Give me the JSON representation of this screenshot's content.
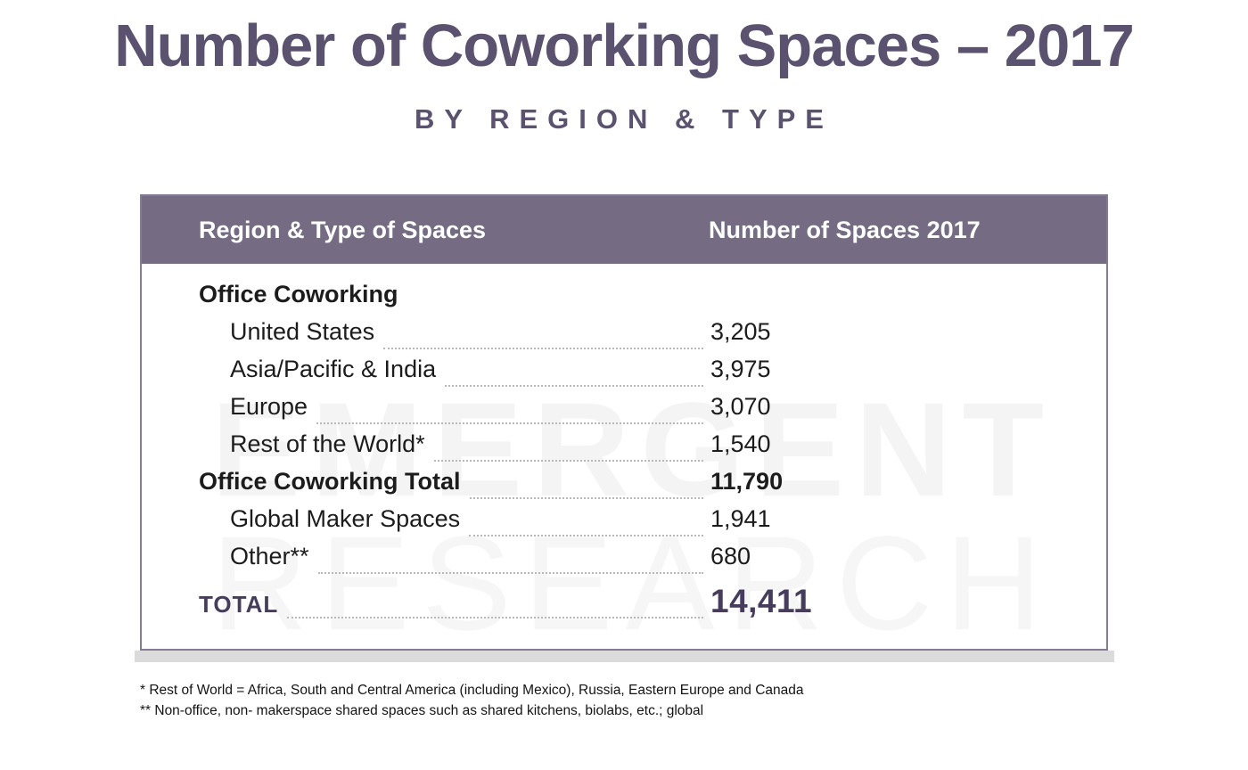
{
  "header": {
    "title": "Number of Coworking Spaces – 2017",
    "subtitle": "BY REGION & TYPE"
  },
  "table": {
    "columns": {
      "col1": "Region & Type of Spaces",
      "col2": "Number of Spaces 2017"
    },
    "rows": [
      {
        "label": "Office Coworking",
        "value": ""
      },
      {
        "label": "United States",
        "value": "3,205"
      },
      {
        "label": "Asia/Pacific & India",
        "value": "3,975"
      },
      {
        "label": "Europe",
        "value": "3,070"
      },
      {
        "label": "Rest of the World*",
        "value": "1,540"
      },
      {
        "label": "Office Coworking Total",
        "value": "11,790"
      },
      {
        "label": "Global Maker Spaces",
        "value": "1,941"
      },
      {
        "label": "Other**",
        "value": "680"
      }
    ],
    "total": {
      "label": "TOTAL",
      "value": "14,411"
    }
  },
  "watermark": {
    "line1": "EMERGENT",
    "line2": "RESEARCH"
  },
  "footnotes": [
    "* Rest of World = Africa, South and Central America (including Mexico), Russia, Eastern Europe and Canada",
    "** Non-office, non- makerspace shared spaces such as shared kitchens, biolabs, etc.; global"
  ],
  "colors": {
    "title_purple": "#5b5270",
    "header_band_bg": "#756c84",
    "header_band_text": "#ffffff",
    "body_text": "#1c1c1c",
    "total_purple": "#463d5c",
    "leader_dots": "#b9b9b9",
    "card_border": "#837c92",
    "card_shadow": "#dbdbdb",
    "watermark": "#f4f4f4"
  },
  "chart_data": {
    "type": "table",
    "title": "Number of Coworking Spaces – 2017",
    "subtitle": "BY REGION & TYPE",
    "columns": [
      "Region & Type of Spaces",
      "Number of Spaces 2017"
    ],
    "rows": [
      {
        "label": "Office Coworking",
        "value": null,
        "style": "group-header"
      },
      {
        "label": "United States",
        "value": 3205,
        "style": "item"
      },
      {
        "label": "Asia/Pacific & India",
        "value": 3975,
        "style": "item"
      },
      {
        "label": "Europe",
        "value": 3070,
        "style": "item"
      },
      {
        "label": "Rest of the World*",
        "value": 1540,
        "style": "item"
      },
      {
        "label": "Office Coworking Total",
        "value": 11790,
        "style": "subtotal"
      },
      {
        "label": "Global Maker Spaces",
        "value": 1941,
        "style": "item"
      },
      {
        "label": "Other**",
        "value": 680,
        "style": "item"
      },
      {
        "label": "TOTAL",
        "value": 14411,
        "style": "grand-total"
      }
    ],
    "footnotes": [
      "* Rest of World = Africa, South and Central America (including Mexico), Russia, Eastern Europe and Canada",
      "** Non-office, non- makerspace shared spaces such as shared kitchens, biolabs, etc.; global"
    ],
    "source_watermark": "EMERGENT RESEARCH"
  }
}
